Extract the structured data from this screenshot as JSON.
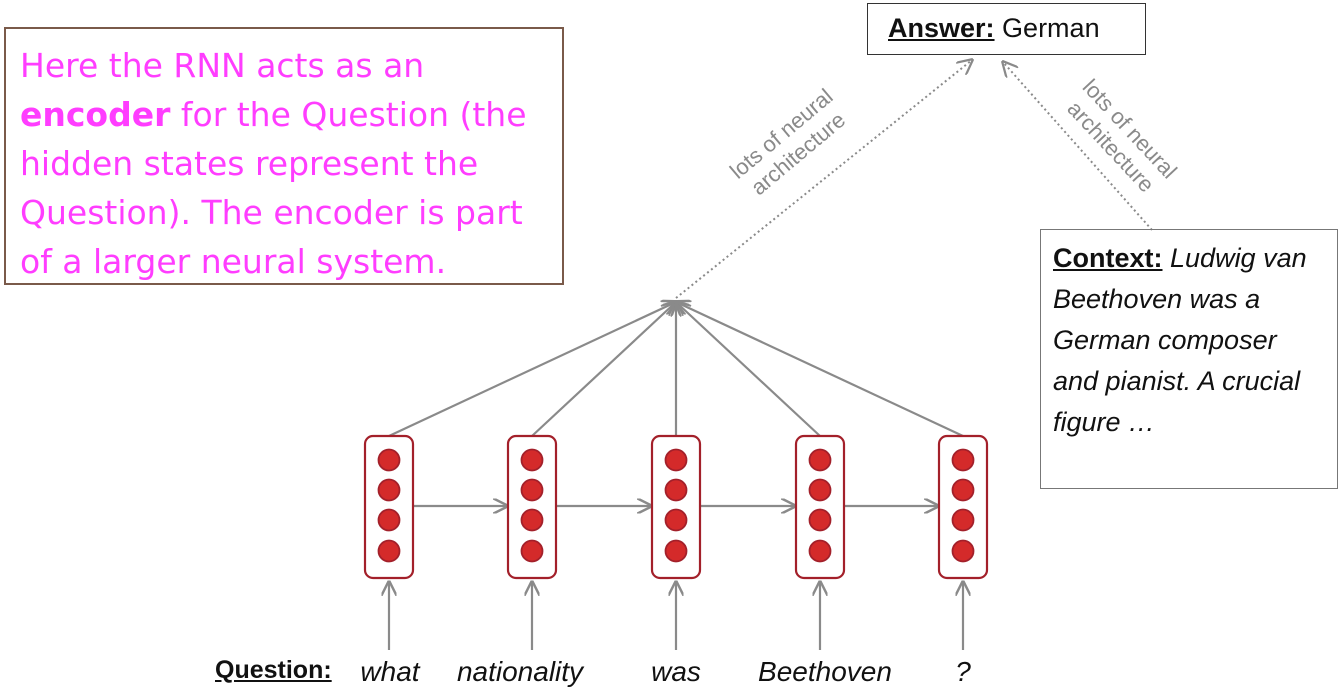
{
  "callout": {
    "text_before": "Here the RNN acts as an ",
    "bold_word": "encoder",
    "text_after": " for the Question (the hidden states represent the Question). The encoder is part of a larger neural system."
  },
  "answer": {
    "label": "Answer:",
    "value": "German"
  },
  "context": {
    "label": "Context:",
    "text": "Ludwig van Beethoven was a German composer and pianist. A crucial figure …"
  },
  "question": {
    "label": "Question:",
    "words": [
      "what",
      "nationality",
      "was",
      "Beethoven",
      "?"
    ]
  },
  "arrow_labels": {
    "left": {
      "line1": "lots of neural",
      "line2": "architecture"
    },
    "right": {
      "line1": "lots of neural",
      "line2": "architecture"
    }
  },
  "colors": {
    "callout_text": "#ff3dff",
    "cell_fill": "#d42a2a",
    "cell_border": "#a3202a",
    "arrow": "#8a8a8a"
  }
}
